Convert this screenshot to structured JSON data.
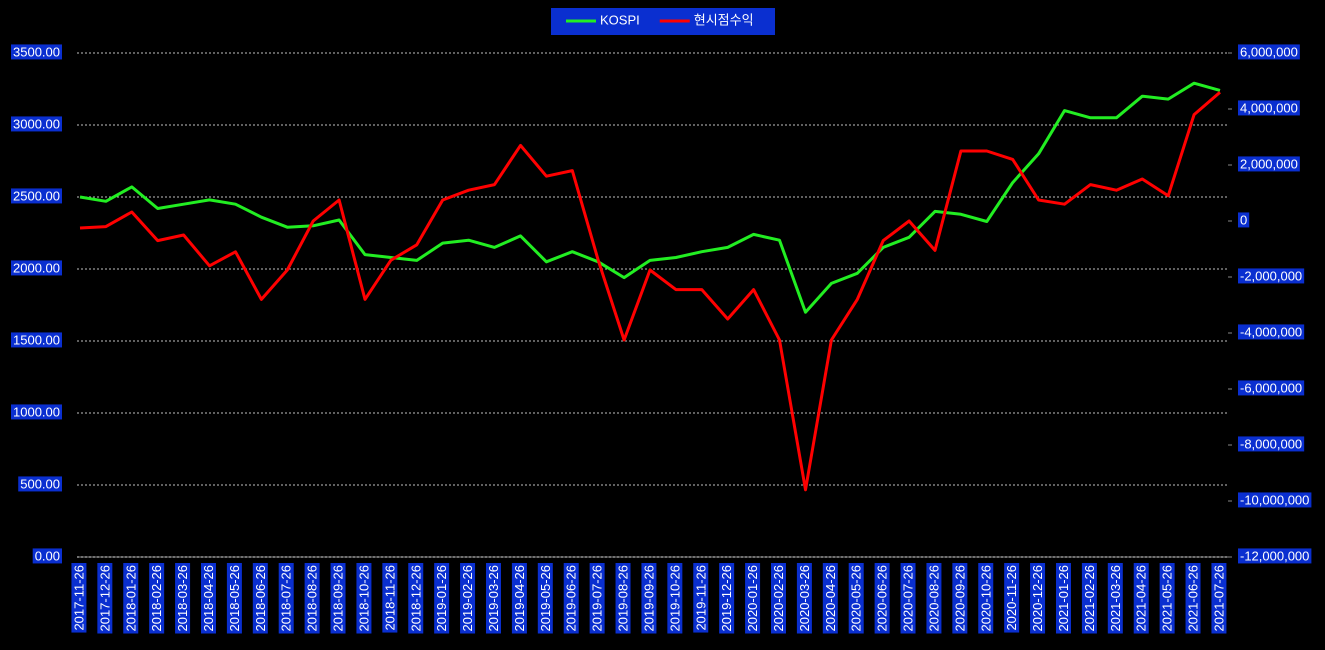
{
  "chart_data": {
    "type": "line",
    "categories": [
      "2017-11-26",
      "2017-12-26",
      "2018-01-26",
      "2018-02-26",
      "2018-03-26",
      "2018-04-26",
      "2018-05-26",
      "2018-06-26",
      "2018-07-26",
      "2018-08-26",
      "2018-09-26",
      "2018-10-26",
      "2018-11-26",
      "2018-12-26",
      "2019-01-26",
      "2019-02-26",
      "2019-03-26",
      "2019-04-26",
      "2019-05-26",
      "2019-06-26",
      "2019-07-26",
      "2019-08-26",
      "2019-09-26",
      "2019-10-26",
      "2019-11-26",
      "2019-12-26",
      "2020-01-26",
      "2020-02-26",
      "2020-03-26",
      "2020-04-26",
      "2020-05-26",
      "2020-06-26",
      "2020-07-26",
      "2020-08-26",
      "2020-09-26",
      "2020-10-26",
      "2020-11-26",
      "2020-12-26",
      "2021-01-26",
      "2021-02-26",
      "2021-03-26",
      "2021-04-26",
      "2021-05-26",
      "2021-06-26",
      "2021-07-26"
    ],
    "series": [
      {
        "name": "KOSPI",
        "color": "#22ee22",
        "values": [
          2500,
          2470,
          2570,
          2420,
          2450,
          2480,
          2450,
          2360,
          2290,
          2300,
          2340,
          2100,
          2080,
          2060,
          2180,
          2200,
          2150,
          2230,
          2050,
          2120,
          2050,
          1940,
          2060,
          2080,
          2120,
          2150,
          2240,
          2200,
          1700,
          1900,
          1970,
          2150,
          2220,
          2400,
          2380,
          2330,
          2600,
          2800,
          3100,
          3050,
          3050,
          3200,
          3180,
          3290,
          3240
        ]
      },
      {
        "name": "현시점수익",
        "color": "#ff0000",
        "axis": "y2",
        "values": [
          -250000,
          -200000,
          320000,
          -700000,
          -500000,
          -1600000,
          -1100000,
          -2800000,
          -1750000,
          0,
          750000,
          -2800000,
          -1400000,
          -850000,
          750000,
          1100000,
          1300000,
          2700000,
          1600000,
          1800000,
          -1400000,
          -4250000,
          -1750000,
          -2450000,
          -2450000,
          -3500000,
          -2450000,
          -4250000,
          -9600000,
          -4250000,
          -2800000,
          -700000,
          0,
          -1050000,
          2500000,
          2500000,
          2200000,
          750000,
          600000,
          1300000,
          1100000,
          1500000,
          900000,
          3800000,
          4600000
        ]
      }
    ],
    "ylim": [
      0,
      3500
    ],
    "yticks": [
      {
        "value": 0,
        "label": "0.00"
      },
      {
        "value": 500,
        "label": "500.00"
      },
      {
        "value": 1000,
        "label": "1000.00"
      },
      {
        "value": 1500,
        "label": "1500.00"
      },
      {
        "value": 2000,
        "label": "2000.00"
      },
      {
        "value": 2500,
        "label": "2500.00"
      },
      {
        "value": 3000,
        "label": "3000.00"
      },
      {
        "value": 3500,
        "label": "3500.00"
      }
    ],
    "y2lim": [
      -12000000,
      6000000
    ],
    "y2ticks": [
      {
        "value": -12000000,
        "label": "-12,000,000"
      },
      {
        "value": -10000000,
        "label": "-10,000,000"
      },
      {
        "value": -8000000,
        "label": "-8,000,000"
      },
      {
        "value": -6000000,
        "label": "-6,000,000"
      },
      {
        "value": -4000000,
        "label": "-4,000,000"
      },
      {
        "value": -2000000,
        "label": "-2,000,000"
      },
      0,
      {
        "value": 2000000,
        "label": "2,000,000"
      },
      {
        "value": 4000000,
        "label": "4,000,000"
      },
      {
        "value": 6000000,
        "label": "6,000,000"
      }
    ],
    "grid": true,
    "legend": "top"
  }
}
